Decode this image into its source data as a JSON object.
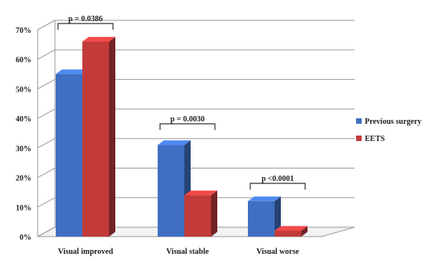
{
  "chart_data": {
    "type": "bar",
    "categories": [
      "Visual improved",
      "Visual stable",
      "Visual worse"
    ],
    "series": [
      {
        "name": "Previous surgery",
        "values": [
          55,
          31,
          12
        ],
        "color": "#3f6fc2"
      },
      {
        "name": "EETS",
        "values": [
          66,
          14,
          2
        ],
        "color": "#c23a3a"
      }
    ],
    "ylim": [
      0,
      70
    ],
    "yticks": [
      0,
      10,
      20,
      30,
      40,
      50,
      60,
      70
    ],
    "ytick_labels": [
      "0%",
      "10%",
      "20%",
      "30%",
      "40%",
      "50%",
      "60%",
      "70%"
    ],
    "grid": true,
    "legend_position": "right",
    "annotations": [
      "p = 0.0386",
      "p = 0.0030",
      "p <0.0001"
    ],
    "title": "",
    "xlabel": "",
    "ylabel": ""
  }
}
